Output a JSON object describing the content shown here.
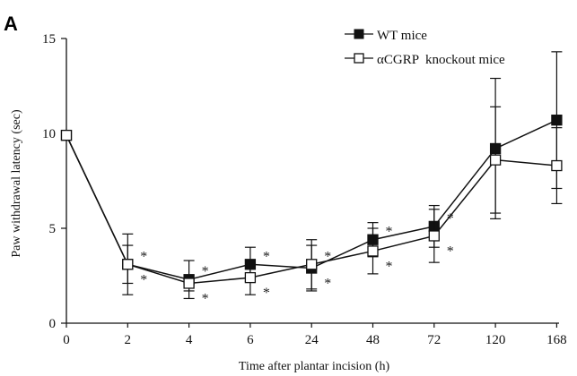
{
  "panel_label": "A",
  "chart_data": {
    "type": "line",
    "xlabel": "Time after plantar incision (h)",
    "ylabel": "Paw withdrawal latency (sec)",
    "categories": [
      "0",
      "2",
      "4",
      "6",
      "24",
      "48",
      "72",
      "120",
      "168"
    ],
    "yticks": [
      "0",
      "5",
      "10",
      "15"
    ],
    "ylim": [
      0,
      15
    ],
    "legend_position": "top-right",
    "grid": false,
    "series": [
      {
        "name": "WT mice",
        "marker": "filled-square",
        "color": "#111111",
        "values": [
          9.9,
          3.1,
          2.3,
          3.1,
          2.9,
          4.4,
          5.1,
          9.2,
          10.7
        ],
        "error": [
          0.0,
          1.6,
          1.0,
          0.9,
          1.2,
          0.9,
          1.1,
          3.7,
          3.6
        ]
      },
      {
        "name": "αCGRP  knockout mice",
        "marker": "open-square",
        "color": "#111111",
        "values": [
          9.9,
          3.1,
          2.1,
          2.4,
          3.1,
          3.8,
          4.6,
          8.6,
          8.3
        ],
        "error": [
          0.0,
          1.0,
          0.4,
          0.9,
          1.3,
          1.2,
          1.4,
          2.8,
          2.0
        ]
      }
    ],
    "significance": [
      {
        "category": "2",
        "positions": [
          "above",
          "below"
        ],
        "symbol": "*"
      },
      {
        "category": "4",
        "positions": [
          "above",
          "below"
        ],
        "symbol": "*"
      },
      {
        "category": "6",
        "positions": [
          "above",
          "below"
        ],
        "symbol": "*"
      },
      {
        "category": "24",
        "positions": [
          "above",
          "below"
        ],
        "symbol": "*"
      },
      {
        "category": "48",
        "positions": [
          "above",
          "below"
        ],
        "symbol": "*"
      },
      {
        "category": "72",
        "positions": [
          "above",
          "below"
        ],
        "symbol": "*"
      }
    ]
  }
}
